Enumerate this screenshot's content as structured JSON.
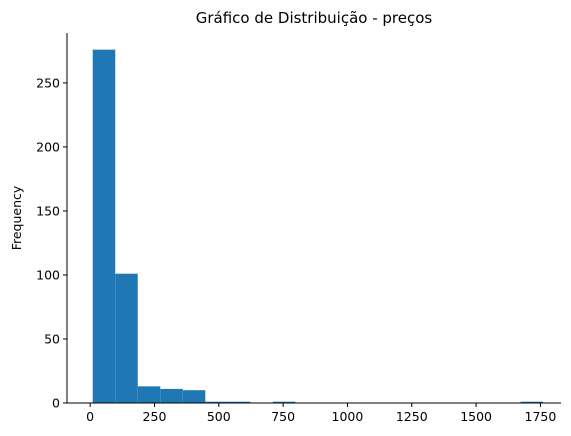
{
  "chart_data": {
    "type": "bar",
    "title": "Gráfico de Distribuição - preços",
    "xlabel": "",
    "ylabel": "Frequency",
    "xlim": [
      -90,
      1830
    ],
    "ylim": [
      0,
      289
    ],
    "xticks": [
      0,
      250,
      500,
      750,
      1000,
      1250,
      1500,
      1750
    ],
    "yticks": [
      0,
      50,
      100,
      150,
      200,
      250
    ],
    "bin_edges": [
      10,
      97.5,
      185,
      272.5,
      360,
      447.5,
      535,
      622.5,
      710,
      797.5,
      885,
      972.5,
      1060,
      1147.5,
      1235,
      1322.5,
      1410,
      1497.5,
      1585,
      1672.5,
      1760
    ],
    "values": [
      276,
      101,
      13,
      11,
      10,
      1,
      1,
      0,
      1,
      0,
      0,
      0,
      0,
      0,
      0,
      0,
      0,
      0,
      0,
      1
    ],
    "grid": false,
    "bar_color": "#1f77b4"
  }
}
